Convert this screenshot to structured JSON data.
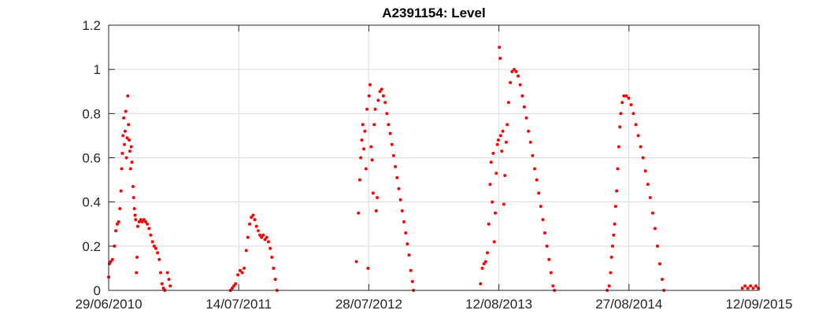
{
  "chart_data": {
    "type": "scatter",
    "title": "A2391154: Level",
    "xlabel": "",
    "ylabel": "",
    "x_tick_labels": [
      "29/06/2010",
      "14/07/2011",
      "28/07/2012",
      "12/08/2013",
      "27/08/2014",
      "12/09/2015"
    ],
    "y_tick_labels": [
      "0",
      "0.2",
      "0.4",
      "0.6",
      "0.8",
      "1",
      "1.2"
    ],
    "xlim": [
      "2010-06-29",
      "2015-09-12"
    ],
    "ylim": [
      0,
      1.2
    ],
    "grid": true,
    "marker_color": "#ff0000",
    "series": [
      {
        "points": [
          [
            "2010-06-29",
            0.06
          ],
          [
            "2010-07-01",
            0.12
          ],
          [
            "2010-07-05",
            0.13
          ],
          [
            "2010-07-10",
            0.14
          ],
          [
            "2010-07-16",
            0.2
          ],
          [
            "2010-07-20",
            0.27
          ],
          [
            "2010-07-24",
            0.3
          ],
          [
            "2010-07-28",
            0.31
          ],
          [
            "2010-08-01",
            0.37
          ],
          [
            "2010-08-04",
            0.45
          ],
          [
            "2010-08-06",
            0.55
          ],
          [
            "2010-08-08",
            0.62
          ],
          [
            "2010-08-10",
            0.7
          ],
          [
            "2010-08-12",
            0.78
          ],
          [
            "2010-08-14",
            0.66
          ],
          [
            "2010-08-16",
            0.72
          ],
          [
            "2010-08-18",
            0.81
          ],
          [
            "2010-08-20",
            0.6
          ],
          [
            "2010-08-22",
            0.69
          ],
          [
            "2010-08-24",
            0.88
          ],
          [
            "2010-08-26",
            0.75
          ],
          [
            "2010-08-28",
            0.68
          ],
          [
            "2010-08-30",
            0.63
          ],
          [
            "2010-09-01",
            0.55
          ],
          [
            "2010-09-03",
            0.65
          ],
          [
            "2010-09-05",
            0.58
          ],
          [
            "2010-09-08",
            0.47
          ],
          [
            "2010-09-10",
            0.42
          ],
          [
            "2010-09-12",
            0.37
          ],
          [
            "2010-09-14",
            0.34
          ],
          [
            "2010-09-16",
            0.32
          ],
          [
            "2010-09-18",
            0.08
          ],
          [
            "2010-09-20",
            0.15
          ],
          [
            "2010-09-22",
            0.29
          ],
          [
            "2010-09-26",
            0.31
          ],
          [
            "2010-10-01",
            0.32
          ],
          [
            "2010-10-05",
            0.31
          ],
          [
            "2010-10-10",
            0.32
          ],
          [
            "2010-10-15",
            0.31
          ],
          [
            "2010-10-20",
            0.3
          ],
          [
            "2010-10-25",
            0.28
          ],
          [
            "2010-10-30",
            0.25
          ],
          [
            "2010-11-04",
            0.22
          ],
          [
            "2010-11-09",
            0.2
          ],
          [
            "2010-11-14",
            0.19
          ],
          [
            "2010-11-19",
            0.17
          ],
          [
            "2010-11-24",
            0.14
          ],
          [
            "2010-11-28",
            0.08
          ],
          [
            "2010-12-02",
            0.03
          ],
          [
            "2010-12-06",
            0.01
          ],
          [
            "2010-12-10",
            0.0
          ],
          [
            "2010-12-18",
            0.08
          ],
          [
            "2010-12-22",
            0.05
          ],
          [
            "2010-12-26",
            0.02
          ],
          [
            "2011-06-20",
            0.0
          ],
          [
            "2011-06-25",
            0.01
          ],
          [
            "2011-06-30",
            0.02
          ],
          [
            "2011-07-05",
            0.03
          ],
          [
            "2011-07-12",
            0.07
          ],
          [
            "2011-07-18",
            0.09
          ],
          [
            "2011-07-24",
            0.08
          ],
          [
            "2011-07-30",
            0.1
          ],
          [
            "2011-08-05",
            0.18
          ],
          [
            "2011-08-10",
            0.24
          ],
          [
            "2011-08-15",
            0.3
          ],
          [
            "2011-08-20",
            0.33
          ],
          [
            "2011-08-25",
            0.34
          ],
          [
            "2011-08-30",
            0.32
          ],
          [
            "2011-09-04",
            0.29
          ],
          [
            "2011-09-09",
            0.27
          ],
          [
            "2011-09-14",
            0.25
          ],
          [
            "2011-09-19",
            0.24
          ],
          [
            "2011-09-24",
            0.25
          ],
          [
            "2011-09-29",
            0.23
          ],
          [
            "2011-10-04",
            0.24
          ],
          [
            "2011-10-09",
            0.22
          ],
          [
            "2011-10-14",
            0.19
          ],
          [
            "2011-10-19",
            0.15
          ],
          [
            "2011-10-24",
            0.1
          ],
          [
            "2011-10-29",
            0.05
          ],
          [
            "2011-11-03",
            0.0
          ],
          [
            "2012-06-22",
            0.13
          ],
          [
            "2012-06-28",
            0.35
          ],
          [
            "2012-07-02",
            0.5
          ],
          [
            "2012-07-05",
            0.6
          ],
          [
            "2012-07-08",
            0.68
          ],
          [
            "2012-07-11",
            0.75
          ],
          [
            "2012-07-14",
            0.64
          ],
          [
            "2012-07-17",
            0.72
          ],
          [
            "2012-07-20",
            0.55
          ],
          [
            "2012-07-23",
            0.82
          ],
          [
            "2012-07-26",
            0.1
          ],
          [
            "2012-07-29",
            0.88
          ],
          [
            "2012-08-01",
            0.93
          ],
          [
            "2012-08-04",
            0.65
          ],
          [
            "2012-08-07",
            0.59
          ],
          [
            "2012-08-10",
            0.44
          ],
          [
            "2012-08-13",
            0.75
          ],
          [
            "2012-08-16",
            0.82
          ],
          [
            "2012-08-19",
            0.36
          ],
          [
            "2012-08-22",
            0.42
          ],
          [
            "2012-08-25",
            0.86
          ],
          [
            "2012-08-30",
            0.9
          ],
          [
            "2012-09-04",
            0.91
          ],
          [
            "2012-09-09",
            0.88
          ],
          [
            "2012-09-14",
            0.85
          ],
          [
            "2012-09-19",
            0.8
          ],
          [
            "2012-09-24",
            0.75
          ],
          [
            "2012-09-29",
            0.71
          ],
          [
            "2012-10-04",
            0.66
          ],
          [
            "2012-10-09",
            0.61
          ],
          [
            "2012-10-14",
            0.56
          ],
          [
            "2012-10-19",
            0.51
          ],
          [
            "2012-10-24",
            0.46
          ],
          [
            "2012-10-29",
            0.41
          ],
          [
            "2012-11-03",
            0.36
          ],
          [
            "2012-11-08",
            0.31
          ],
          [
            "2012-11-13",
            0.26
          ],
          [
            "2012-11-18",
            0.21
          ],
          [
            "2012-11-23",
            0.16
          ],
          [
            "2012-11-28",
            0.09
          ],
          [
            "2012-12-03",
            0.04
          ],
          [
            "2012-12-06",
            0.0
          ],
          [
            "2013-06-20",
            0.03
          ],
          [
            "2013-06-25",
            0.1
          ],
          [
            "2013-06-30",
            0.12
          ],
          [
            "2013-07-05",
            0.13
          ],
          [
            "2013-07-10",
            0.17
          ],
          [
            "2013-07-14",
            0.3
          ],
          [
            "2013-07-18",
            0.48
          ],
          [
            "2013-07-21",
            0.58
          ],
          [
            "2013-07-24",
            0.4
          ],
          [
            "2013-07-27",
            0.62
          ],
          [
            "2013-07-30",
            0.22
          ],
          [
            "2013-08-02",
            0.35
          ],
          [
            "2013-08-05",
            0.53
          ],
          [
            "2013-08-08",
            0.66
          ],
          [
            "2013-08-11",
            0.68
          ],
          [
            "2013-08-14",
            1.1
          ],
          [
            "2013-08-16",
            1.05
          ],
          [
            "2013-08-18",
            0.7
          ],
          [
            "2013-08-21",
            0.63
          ],
          [
            "2013-08-24",
            0.72
          ],
          [
            "2013-08-27",
            0.39
          ],
          [
            "2013-08-30",
            0.52
          ],
          [
            "2013-09-03",
            0.67
          ],
          [
            "2013-09-06",
            0.75
          ],
          [
            "2013-09-10",
            0.85
          ],
          [
            "2013-09-15",
            0.94
          ],
          [
            "2013-09-20",
            0.99
          ],
          [
            "2013-09-26",
            1.0
          ],
          [
            "2013-10-02",
            0.99
          ],
          [
            "2013-10-08",
            0.97
          ],
          [
            "2013-10-14",
            0.93
          ],
          [
            "2013-10-20",
            0.88
          ],
          [
            "2013-10-26",
            0.83
          ],
          [
            "2013-11-01",
            0.78
          ],
          [
            "2013-11-07",
            0.72
          ],
          [
            "2013-11-13",
            0.67
          ],
          [
            "2013-11-19",
            0.61
          ],
          [
            "2013-11-25",
            0.55
          ],
          [
            "2013-12-01",
            0.5
          ],
          [
            "2013-12-07",
            0.44
          ],
          [
            "2013-12-13",
            0.38
          ],
          [
            "2013-12-19",
            0.32
          ],
          [
            "2013-12-25",
            0.26
          ],
          [
            "2013-12-31",
            0.2
          ],
          [
            "2014-01-06",
            0.14
          ],
          [
            "2014-01-12",
            0.08
          ],
          [
            "2014-01-18",
            0.02
          ],
          [
            "2014-01-22",
            0.0
          ],
          [
            "2014-06-25",
            0.0
          ],
          [
            "2014-07-01",
            0.02
          ],
          [
            "2014-07-05",
            0.08
          ],
          [
            "2014-07-08",
            0.15
          ],
          [
            "2014-07-11",
            0.2
          ],
          [
            "2014-07-14",
            0.25
          ],
          [
            "2014-07-17",
            0.3
          ],
          [
            "2014-07-20",
            0.38
          ],
          [
            "2014-07-23",
            0.45
          ],
          [
            "2014-07-26",
            0.55
          ],
          [
            "2014-07-29",
            0.65
          ],
          [
            "2014-08-01",
            0.74
          ],
          [
            "2014-08-04",
            0.8
          ],
          [
            "2014-08-08",
            0.85
          ],
          [
            "2014-08-13",
            0.88
          ],
          [
            "2014-08-20",
            0.88
          ],
          [
            "2014-08-27",
            0.87
          ],
          [
            "2014-09-03",
            0.84
          ],
          [
            "2014-09-10",
            0.8
          ],
          [
            "2014-09-17",
            0.75
          ],
          [
            "2014-09-24",
            0.7
          ],
          [
            "2014-10-01",
            0.65
          ],
          [
            "2014-10-08",
            0.6
          ],
          [
            "2014-10-15",
            0.54
          ],
          [
            "2014-10-22",
            0.48
          ],
          [
            "2014-10-29",
            0.42
          ],
          [
            "2014-11-05",
            0.35
          ],
          [
            "2014-11-12",
            0.28
          ],
          [
            "2014-11-19",
            0.2
          ],
          [
            "2014-11-26",
            0.12
          ],
          [
            "2014-12-03",
            0.05
          ],
          [
            "2014-12-08",
            0.0
          ],
          [
            "2015-07-25",
            0.01
          ],
          [
            "2015-08-02",
            0.02
          ],
          [
            "2015-08-10",
            0.01
          ],
          [
            "2015-08-18",
            0.02
          ],
          [
            "2015-08-26",
            0.01
          ],
          [
            "2015-09-03",
            0.02
          ],
          [
            "2015-09-10",
            0.01
          ]
        ]
      }
    ]
  }
}
